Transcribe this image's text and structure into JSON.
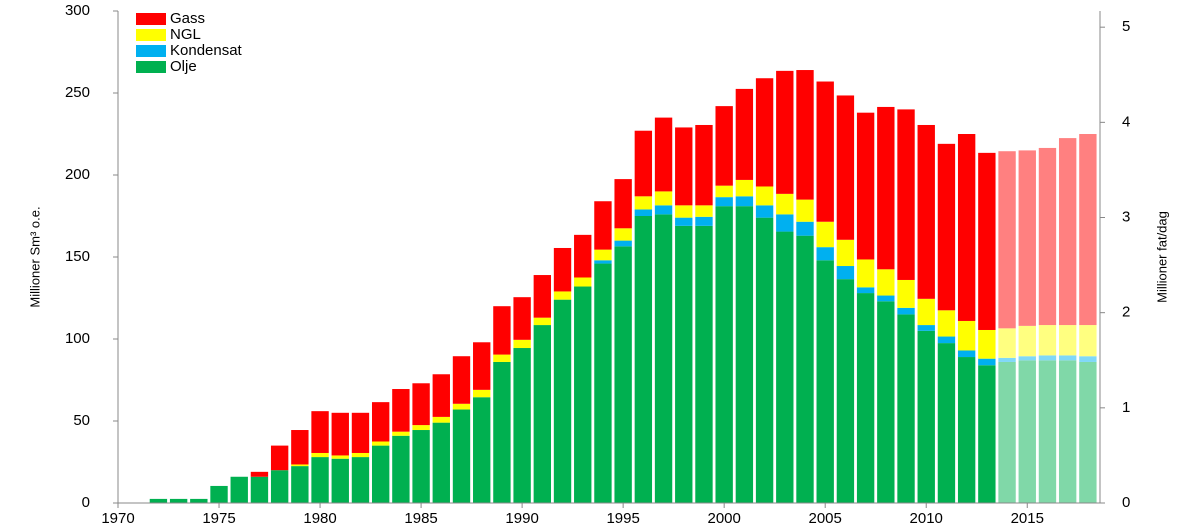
{
  "chart_data": {
    "type": "stacked_bar",
    "ylabel": "Millioner Sm³ o.e.",
    "y2label": "Millioner fat/dag",
    "x": [
      1971,
      1972,
      1973,
      1974,
      1975,
      1976,
      1977,
      1978,
      1979,
      1980,
      1981,
      1982,
      1983,
      1984,
      1985,
      1986,
      1987,
      1988,
      1989,
      1990,
      1991,
      1992,
      1993,
      1994,
      1995,
      1996,
      1997,
      1998,
      1999,
      2000,
      2001,
      2002,
      2003,
      2004,
      2005,
      2006,
      2007,
      2008,
      2009,
      2010,
      2011,
      2012,
      2013,
      2014,
      2015,
      2016,
      2017,
      2018
    ],
    "forecast_from": 2014,
    "series": [
      {
        "name": "Gass",
        "color": "#ff0000",
        "forecast_color": "#ff8080",
        "values": [
          0,
          0,
          0,
          0,
          0,
          0,
          3,
          15,
          21,
          25.5,
          26,
          24.5,
          24,
          26,
          25.5,
          26,
          29,
          29,
          29.5,
          26,
          26,
          26.5,
          26,
          29.5,
          30,
          40,
          45,
          47.5,
          49,
          48.5,
          55.5,
          66,
          75,
          79,
          85.5,
          88,
          89.5,
          99,
          104,
          106,
          101.5,
          114,
          108,
          108,
          107,
          108,
          114,
          116.5
        ]
      },
      {
        "name": "NGL",
        "color": "#ffff00",
        "forecast_color": "#ffff80",
        "values": [
          0,
          0,
          0,
          0,
          0,
          0,
          0,
          0,
          1,
          2.5,
          2,
          2.5,
          2.5,
          2.5,
          3,
          3.5,
          3.5,
          4.5,
          4.5,
          5,
          4.5,
          5,
          5.5,
          6.5,
          7.5,
          8,
          8.5,
          7.5,
          7,
          7,
          10,
          11.5,
          12.5,
          13.5,
          15.5,
          16,
          17,
          16,
          17,
          16,
          16,
          18,
          17.5,
          18,
          18.5,
          18.5,
          18.5,
          19
        ]
      },
      {
        "name": "Kondensat",
        "color": "#00b0f0",
        "forecast_color": "#80d8f8",
        "values": [
          0,
          0,
          0,
          0,
          0,
          0,
          0,
          0,
          0,
          0,
          0,
          0,
          0,
          0,
          0,
          0,
          0,
          0,
          0,
          0,
          0,
          0,
          0,
          2,
          3.5,
          4,
          5.5,
          5,
          5.5,
          5.5,
          6,
          7.5,
          10.5,
          8.5,
          8,
          8,
          3.5,
          3.5,
          4,
          3.5,
          4,
          4,
          4,
          2.5,
          2.5,
          3,
          3,
          3.5
        ]
      },
      {
        "name": "Olje",
        "color": "#00b050",
        "forecast_color": "#80d8a8",
        "values": [
          0.3,
          2.5,
          2.5,
          2.5,
          10.4,
          16,
          16,
          20,
          22.5,
          28,
          27,
          28,
          35,
          41,
          44.5,
          49,
          57,
          64.5,
          86,
          94.5,
          108.5,
          124,
          132,
          146,
          156.5,
          175,
          176,
          169,
          169,
          181,
          181,
          174,
          165.5,
          163,
          148,
          136.5,
          128,
          123,
          115,
          105,
          97.5,
          89,
          84,
          86,
          87,
          87,
          87,
          86
        ]
      }
    ],
    "xlim": [
      1970,
      2018.6
    ],
    "xticks": [
      1970,
      1975,
      1980,
      1985,
      1990,
      1995,
      2000,
      2005,
      2010,
      2015
    ],
    "ylim": [
      0,
      300
    ],
    "yticks": [
      0,
      50,
      100,
      150,
      200,
      250,
      300
    ],
    "y2lim": [
      0,
      5.17
    ],
    "y2ticks": [
      0,
      1,
      2,
      3,
      4,
      5
    ]
  }
}
